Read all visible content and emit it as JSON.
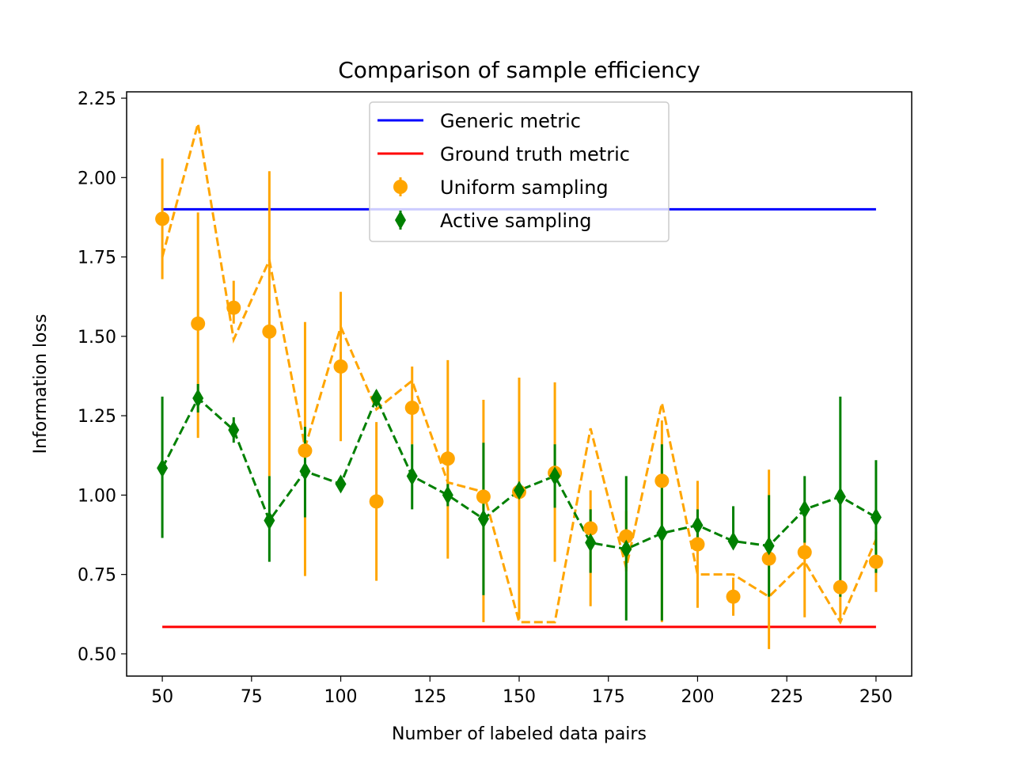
{
  "chart_data": {
    "type": "line",
    "title": "Comparison of sample efficiency",
    "xlabel": "Number of labeled data pairs",
    "ylabel": "Information loss",
    "xlim": [
      40,
      260
    ],
    "ylim": [
      0.43,
      2.27
    ],
    "xticks": [
      50,
      75,
      100,
      125,
      150,
      175,
      200,
      225,
      250
    ],
    "yticks": [
      0.5,
      0.75,
      1.0,
      1.25,
      1.5,
      1.75,
      2.0,
      2.25
    ],
    "xtick_labels": [
      "50",
      "75",
      "100",
      "125",
      "150",
      "175",
      "200",
      "225",
      "250"
    ],
    "ytick_labels": [
      "0.50",
      "0.75",
      "1.00",
      "1.25",
      "1.50",
      "1.75",
      "2.00",
      "2.25"
    ],
    "grid": false,
    "legend_position": "top-center",
    "x": [
      50,
      60,
      70,
      80,
      90,
      100,
      110,
      120,
      130,
      140,
      150,
      160,
      170,
      180,
      190,
      200,
      210,
      220,
      230,
      240,
      250
    ],
    "hlines": [
      {
        "name": "Generic metric",
        "y": 1.9,
        "x_range": [
          50,
          250
        ],
        "color": "#0000ff"
      },
      {
        "name": "Ground truth metric",
        "y": 0.585,
        "x_range": [
          50,
          250
        ],
        "color": "#ff0000"
      }
    ],
    "series": [
      {
        "name": "Uniform sampling",
        "color": "#ffa500",
        "marker": "circle",
        "values": [
          1.87,
          1.54,
          1.59,
          1.515,
          1.14,
          1.405,
          0.98,
          1.275,
          1.115,
          0.995,
          1.01,
          1.07,
          0.895,
          0.87,
          1.045,
          0.845,
          0.68,
          0.8,
          0.82,
          0.71,
          0.79
        ],
        "err_low": [
          1.68,
          1.18,
          1.54,
          1.06,
          0.745,
          1.17,
          0.73,
          1.16,
          0.8,
          0.6,
          0.61,
          0.79,
          0.65,
          0.76,
          0.6,
          0.645,
          0.62,
          0.515,
          0.615,
          0.6,
          0.695
        ],
        "err_high": [
          2.06,
          1.89,
          1.675,
          2.02,
          1.545,
          1.64,
          1.23,
          1.405,
          1.425,
          1.3,
          1.37,
          1.355,
          1.015,
          0.95,
          1.235,
          1.045,
          0.74,
          1.08,
          0.955,
          0.72,
          0.885
        ],
        "trend": [
          1.75,
          2.17,
          1.49,
          1.74,
          1.15,
          1.53,
          1.27,
          1.36,
          1.04,
          1.01,
          0.6,
          0.6,
          1.21,
          0.77,
          1.29,
          0.75,
          0.75,
          0.68,
          0.79,
          0.6,
          0.86
        ]
      },
      {
        "name": "Active sampling",
        "color": "#008000",
        "marker": "diamond",
        "values": [
          1.085,
          1.305,
          1.205,
          0.92,
          1.075,
          1.035,
          1.305,
          1.06,
          1.0,
          0.925,
          1.015,
          1.06,
          0.85,
          0.83,
          0.88,
          0.905,
          0.855,
          0.84,
          0.955,
          0.995,
          0.93
        ],
        "err_low": [
          0.865,
          1.26,
          1.165,
          0.79,
          0.93,
          1.02,
          1.28,
          0.955,
          0.965,
          0.685,
          1.0,
          0.96,
          0.755,
          0.605,
          0.605,
          0.86,
          0.845,
          0.68,
          0.85,
          0.68,
          0.755
        ],
        "err_high": [
          1.31,
          1.35,
          1.245,
          1.06,
          1.215,
          1.05,
          1.33,
          1.16,
          1.035,
          1.165,
          1.03,
          1.16,
          0.955,
          1.06,
          1.16,
          0.955,
          0.965,
          1.0,
          1.06,
          1.31,
          1.11
        ],
        "trend": [
          1.085,
          1.305,
          1.205,
          0.92,
          1.075,
          1.035,
          1.305,
          1.06,
          1.0,
          0.925,
          1.015,
          1.06,
          0.85,
          0.83,
          0.88,
          0.905,
          0.855,
          0.84,
          0.955,
          0.995,
          0.93
        ]
      }
    ]
  }
}
